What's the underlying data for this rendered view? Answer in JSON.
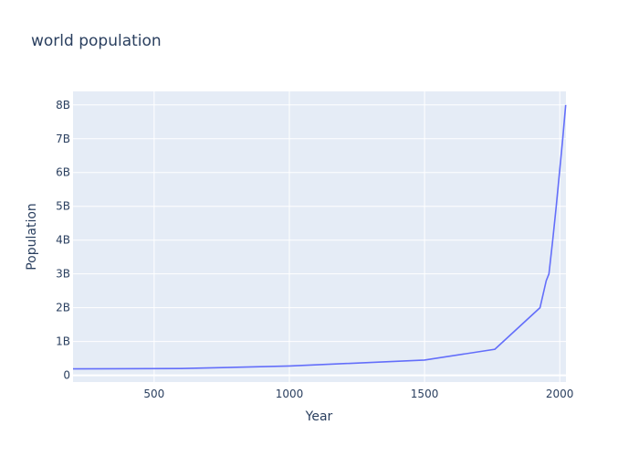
{
  "chart_data": {
    "type": "line",
    "title": "world population",
    "xlabel": "Year",
    "ylabel": "Population",
    "xlim": [
      200,
      2023
    ],
    "ylim": [
      -200000000,
      8400000000
    ],
    "x_ticks": [
      {
        "value": 500,
        "label": "500"
      },
      {
        "value": 1000,
        "label": "1000"
      },
      {
        "value": 1500,
        "label": "1500"
      },
      {
        "value": 2000,
        "label": "2000"
      }
    ],
    "y_ticks": [
      {
        "value": 0,
        "label": "0"
      },
      {
        "value": 1000000000,
        "label": "1B"
      },
      {
        "value": 2000000000,
        "label": "2B"
      },
      {
        "value": 3000000000,
        "label": "3B"
      },
      {
        "value": 4000000000,
        "label": "4B"
      },
      {
        "value": 5000000000,
        "label": "5B"
      },
      {
        "value": 6000000000,
        "label": "6B"
      },
      {
        "value": 7000000000,
        "label": "7B"
      },
      {
        "value": 8000000000,
        "label": "8B"
      }
    ],
    "series": [
      {
        "x": [
          200,
          600,
          1000,
          1500,
          1760,
          1927,
          1950,
          1960,
          1974,
          1987,
          1999,
          2011,
          2022
        ],
        "y": [
          190000000,
          200000000,
          275000000,
          450000000,
          770000000,
          2000000000,
          2800000000,
          3000000000,
          4000000000,
          5000000000,
          6000000000,
          7000000000,
          8000000000
        ]
      }
    ],
    "grid": true,
    "colors": {
      "line": "#636efa",
      "plot_background": "#e5ecf6",
      "grid": "#ffffff",
      "text": "#2a3f5f"
    }
  }
}
